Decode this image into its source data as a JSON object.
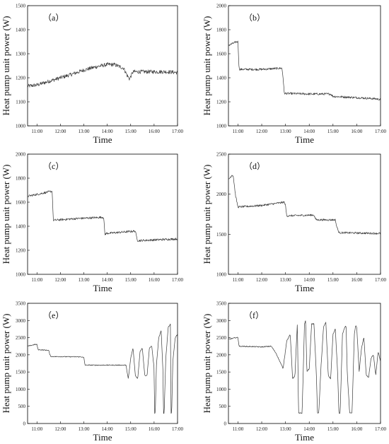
{
  "figure": {
    "series_color": "#3a3a3a"
  },
  "chart_data": [
    {
      "type": "line",
      "panel_label": "（a）",
      "xlabel": "Time",
      "ylabel": "Heat pump unit power (W)",
      "xlim": [
        10.6,
        17.0
      ],
      "ylim": [
        1000,
        1500
      ],
      "xticks": [
        {
          "v": 11,
          "label": "11:00"
        },
        {
          "v": 12,
          "label": "12:00"
        },
        {
          "v": 13,
          "label": "13:00"
        },
        {
          "v": 14,
          "label": "14:00"
        },
        {
          "v": 15,
          "label": "15:00"
        },
        {
          "v": 16,
          "label": "16:00"
        },
        {
          "v": 17,
          "label": "17:00"
        }
      ],
      "yticks": [
        1000,
        1100,
        1200,
        1300,
        1400,
        1500
      ],
      "noise": 8,
      "series": [
        {
          "x": [
            10.6,
            11.0,
            11.5,
            12.0,
            12.5,
            13.0,
            13.5,
            14.0,
            14.3,
            14.7,
            14.85,
            14.95,
            15.1,
            15.5,
            16.0,
            16.5,
            17.0
          ],
          "values": [
            1165,
            1170,
            1185,
            1200,
            1215,
            1232,
            1245,
            1255,
            1255,
            1240,
            1210,
            1195,
            1225,
            1225,
            1225,
            1225,
            1222
          ]
        }
      ]
    },
    {
      "type": "line",
      "panel_label": "（b）",
      "xlabel": "Time",
      "ylabel": "Heat pump unit power (W)",
      "xlim": [
        10.6,
        17.0
      ],
      "ylim": [
        1000,
        2000
      ],
      "xticks": [
        {
          "v": 11,
          "label": "11:00"
        },
        {
          "v": 12,
          "label": "12:00"
        },
        {
          "v": 13,
          "label": "13:00"
        },
        {
          "v": 14,
          "label": "14:00"
        },
        {
          "v": 15,
          "label": "15:00"
        },
        {
          "v": 16,
          "label": "16:00"
        },
        {
          "v": 17,
          "label": "17:00"
        }
      ],
      "yticks": [
        1000,
        1200,
        1400,
        1600,
        1800,
        2000
      ],
      "noise": 9,
      "series": [
        {
          "x": [
            10.6,
            10.95,
            11.0,
            11.05,
            12.0,
            12.85,
            12.9,
            12.95,
            14.0,
            14.9,
            15.0,
            16.0,
            16.8,
            17.0
          ],
          "values": [
            1670,
            1700,
            1700,
            1470,
            1470,
            1480,
            1400,
            1270,
            1265,
            1265,
            1245,
            1235,
            1225,
            1220
          ]
        }
      ]
    },
    {
      "type": "line",
      "panel_label": "（c）",
      "xlabel": "Time",
      "ylabel": "Heat pump unit power (W)",
      "xlim": [
        10.6,
        17.0
      ],
      "ylim": [
        1000,
        2000
      ],
      "xticks": [
        {
          "v": 11,
          "label": "11:00"
        },
        {
          "v": 12,
          "label": "12:00"
        },
        {
          "v": 13,
          "label": "13:00"
        },
        {
          "v": 14,
          "label": "14:00"
        },
        {
          "v": 15,
          "label": "15:00"
        },
        {
          "v": 16,
          "label": "16:00"
        },
        {
          "v": 17,
          "label": "17:00"
        }
      ],
      "yticks": [
        1000,
        1200,
        1400,
        1600,
        1800,
        2000
      ],
      "noise": 9,
      "series": [
        {
          "x": [
            10.6,
            11.0,
            11.6,
            11.65,
            11.7,
            12.8,
            13.85,
            13.9,
            13.95,
            15.2,
            15.25,
            15.3,
            17.0
          ],
          "values": [
            1650,
            1665,
            1690,
            1690,
            1450,
            1465,
            1475,
            1330,
            1340,
            1360,
            1310,
            1280,
            1295
          ]
        }
      ]
    },
    {
      "type": "line",
      "panel_label": "（d）",
      "xlabel": "Time",
      "ylabel": "Heat pump unit power (W)",
      "xlim": [
        10.6,
        17.0
      ],
      "ylim": [
        1000,
        2500
      ],
      "xticks": [
        {
          "v": 11,
          "label": "11:00"
        },
        {
          "v": 12,
          "label": "12:00"
        },
        {
          "v": 13,
          "label": "13:00"
        },
        {
          "v": 14,
          "label": "14:00"
        },
        {
          "v": 15,
          "label": "15:00"
        },
        {
          "v": 16,
          "label": "16:00"
        },
        {
          "v": 17,
          "label": "17:00"
        }
      ],
      "yticks": [
        1000,
        1500,
        2000,
        2500
      ],
      "noise": 12,
      "series": [
        {
          "x": [
            10.6,
            10.75,
            10.8,
            10.9,
            11.0,
            12.0,
            12.95,
            13.0,
            13.05,
            14.2,
            14.25,
            14.3,
            15.1,
            15.15,
            15.25,
            17.0
          ],
          "values": [
            2180,
            2240,
            2230,
            1980,
            1840,
            1860,
            1900,
            1860,
            1730,
            1740,
            1700,
            1680,
            1680,
            1600,
            1520,
            1510
          ]
        }
      ]
    },
    {
      "type": "line",
      "panel_label": "（e）",
      "xlabel": "Time",
      "ylabel": "Heat pump unit power (W)",
      "xlim": [
        10.6,
        17.0
      ],
      "ylim": [
        0,
        3500
      ],
      "xticks": [
        {
          "v": 11,
          "label": "11:00"
        },
        {
          "v": 12,
          "label": "12:00"
        },
        {
          "v": 13,
          "label": "13:00"
        },
        {
          "v": 14,
          "label": "14:00"
        },
        {
          "v": 15,
          "label": "15:00"
        },
        {
          "v": 16,
          "label": "16:00"
        },
        {
          "v": 17,
          "label": "17:00"
        }
      ],
      "yticks": [
        0,
        500,
        1000,
        1500,
        2000,
        2500,
        3000,
        3500
      ],
      "noise": 12,
      "series": [
        {
          "x": [
            10.6,
            10.9,
            11.0,
            11.05,
            11.5,
            11.55,
            11.6,
            12.9,
            13.0,
            13.05,
            14.6,
            14.8,
            14.9,
            15.0,
            15.1,
            15.2,
            15.3,
            15.4,
            15.5,
            15.6,
            15.7,
            15.8,
            15.9,
            16.0,
            16.02,
            16.05,
            16.1,
            16.2,
            16.3,
            16.38,
            16.4,
            16.43,
            16.5,
            16.6,
            16.7,
            16.72,
            16.75,
            16.8,
            16.9,
            17.0
          ],
          "values": [
            2250,
            2300,
            2300,
            2150,
            2130,
            2000,
            1950,
            1940,
            1920,
            1700,
            1700,
            1700,
            1300,
            1900,
            2200,
            1400,
            1300,
            2100,
            2200,
            1400,
            1400,
            2200,
            2250,
            1600,
            300,
            300,
            1700,
            2500,
            2700,
            1500,
            300,
            300,
            1900,
            2800,
            2900,
            300,
            300,
            1800,
            2500,
            2600
          ]
        }
      ]
    },
    {
      "type": "line",
      "panel_label": "（f）",
      "xlabel": "Time",
      "ylabel": "Heat pump unit power (W)",
      "xlim": [
        10.6,
        17.0
      ],
      "ylim": [
        0,
        3500
      ],
      "xticks": [
        {
          "v": 11,
          "label": "11:00"
        },
        {
          "v": 12,
          "label": "12:00"
        },
        {
          "v": 13,
          "label": "13:00"
        },
        {
          "v": 14,
          "label": "14:00"
        },
        {
          "v": 15,
          "label": "15:00"
        },
        {
          "v": 16,
          "label": "16:00"
        },
        {
          "v": 17,
          "label": "17:00"
        }
      ],
      "yticks": [
        0,
        500,
        1000,
        1500,
        2000,
        2500,
        3000,
        3500
      ],
      "noise": 14,
      "series": [
        {
          "x": [
            10.6,
            10.9,
            11.0,
            11.05,
            12.0,
            12.4,
            12.6,
            12.9,
            13.05,
            13.2,
            13.3,
            13.4,
            13.5,
            13.55,
            13.7,
            13.8,
            13.85,
            13.9,
            14.0,
            14.1,
            14.2,
            14.3,
            14.35,
            14.4,
            14.5,
            14.6,
            14.7,
            14.8,
            14.9,
            15.0,
            15.1,
            15.2,
            15.25,
            15.3,
            15.4,
            15.5,
            15.55,
            15.6,
            15.7,
            15.8,
            15.9,
            15.95,
            16.0,
            16.1,
            16.2,
            16.3,
            16.4,
            16.5,
            16.6,
            16.7,
            16.8,
            16.9,
            17.0
          ],
          "values": [
            2450,
            2500,
            2500,
            2250,
            2230,
            2250,
            2050,
            1600,
            2400,
            2600,
            1300,
            1400,
            2950,
            300,
            300,
            2900,
            3000,
            1500,
            1600,
            2900,
            2900,
            1400,
            300,
            300,
            1700,
            2800,
            2950,
            1400,
            1300,
            2600,
            2750,
            1400,
            300,
            300,
            2600,
            2800,
            2850,
            1500,
            300,
            300,
            2600,
            2850,
            2800,
            1500,
            2200,
            2500,
            1400,
            1350,
            1900,
            2000,
            1400,
            2100,
            1800
          ]
        }
      ]
    }
  ]
}
